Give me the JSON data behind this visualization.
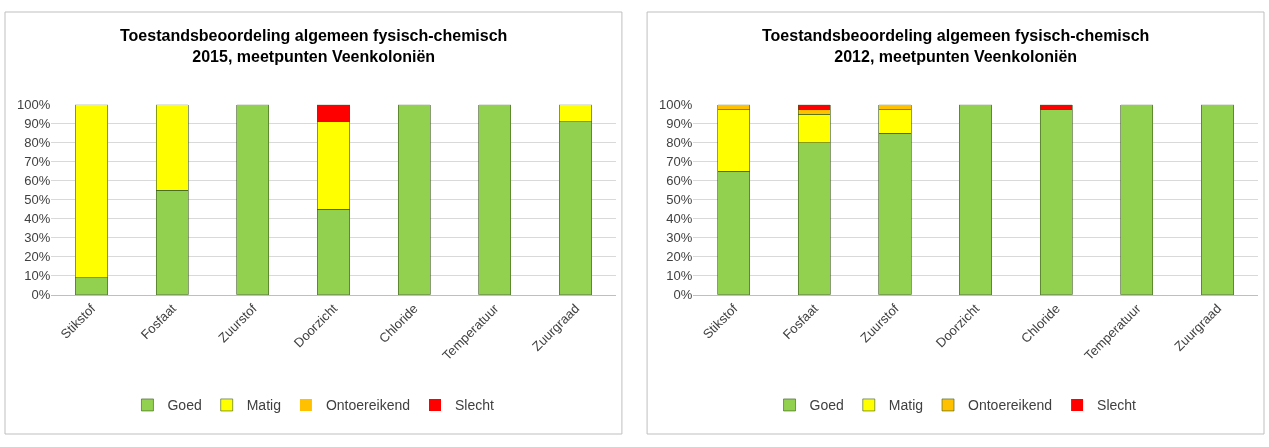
{
  "chart_data": [
    {
      "type": "bar",
      "title": "Toestandsbeoordeling algemeen fysisch-chemisch\n2015, meetpunten Veenkoloniën",
      "stacked": true,
      "categories": [
        "Stikstof",
        "Fosfaat",
        "Zuurstof",
        "Doorzicht",
        "Chloride",
        "Temperatuur",
        "Zuurgraad"
      ],
      "series": [
        {
          "name": "Goed",
          "color": "#92d050",
          "values": [
            9,
            55,
            100,
            45,
            100,
            100,
            91
          ]
        },
        {
          "name": "Matig",
          "color": "#ffff00",
          "values": [
            91,
            45,
            0,
            46,
            0,
            0,
            9
          ]
        },
        {
          "name": "Ontoereikend",
          "color": "#ffc000",
          "values": [
            0,
            0,
            0,
            0,
            0,
            0,
            0
          ]
        },
        {
          "name": "Slecht",
          "color": "#ff0000",
          "values": [
            0,
            0,
            0,
            9,
            0,
            0,
            0
          ]
        }
      ],
      "ylim": [
        0,
        100
      ],
      "yticks": [
        {
          "value": 0,
          "label": "0%"
        },
        {
          "value": 10,
          "label": "10%"
        },
        {
          "value": 20,
          "label": "20%"
        },
        {
          "value": 30,
          "label": "30%"
        },
        {
          "value": 40,
          "label": "40%"
        },
        {
          "value": 50,
          "label": "50%"
        },
        {
          "value": 60,
          "label": "60%"
        },
        {
          "value": 70,
          "label": "70%"
        },
        {
          "value": 80,
          "label": "80%"
        },
        {
          "value": 90,
          "label": "90%"
        },
        {
          "value": 100,
          "label": "100%"
        }
      ],
      "grid": "y",
      "legend": "bottom"
    },
    {
      "type": "bar",
      "title": "Toestandsbeoordeling algemeen fysisch-chemisch\n2012, meetpunten Veenkoloniën",
      "stacked": true,
      "categories": [
        "Stikstof",
        "Fosfaat",
        "Zuurstof",
        "Doorzicht",
        "Chloride",
        "Temperatuur",
        "Zuurgraad"
      ],
      "series": [
        {
          "name": "Goed",
          "color": "#92d050",
          "values": [
            65,
            80,
            85,
            100,
            97.5,
            100,
            100
          ]
        },
        {
          "name": "Matig",
          "color": "#ffff00",
          "values": [
            32.5,
            15,
            12.5,
            0,
            0,
            0,
            0
          ]
        },
        {
          "name": "Ontoereikend",
          "color": "#ffc000",
          "values": [
            2.5,
            2.5,
            2.5,
            0,
            0,
            0,
            0
          ]
        },
        {
          "name": "Slecht",
          "color": "#ff0000",
          "values": [
            0,
            2.5,
            0,
            0,
            2.5,
            0,
            0
          ]
        }
      ],
      "ylim": [
        0,
        100
      ],
      "yticks": [
        {
          "value": 0,
          "label": "0%"
        },
        {
          "value": 10,
          "label": "10%"
        },
        {
          "value": 20,
          "label": "20%"
        },
        {
          "value": 30,
          "label": "30%"
        },
        {
          "value": 40,
          "label": "40%"
        },
        {
          "value": 50,
          "label": "50%"
        },
        {
          "value": 60,
          "label": "60%"
        },
        {
          "value": 70,
          "label": "70%"
        },
        {
          "value": 80,
          "label": "80%"
        },
        {
          "value": 90,
          "label": "90%"
        },
        {
          "value": 100,
          "label": "100%"
        }
      ],
      "grid": "y",
      "legend": "bottom"
    }
  ]
}
